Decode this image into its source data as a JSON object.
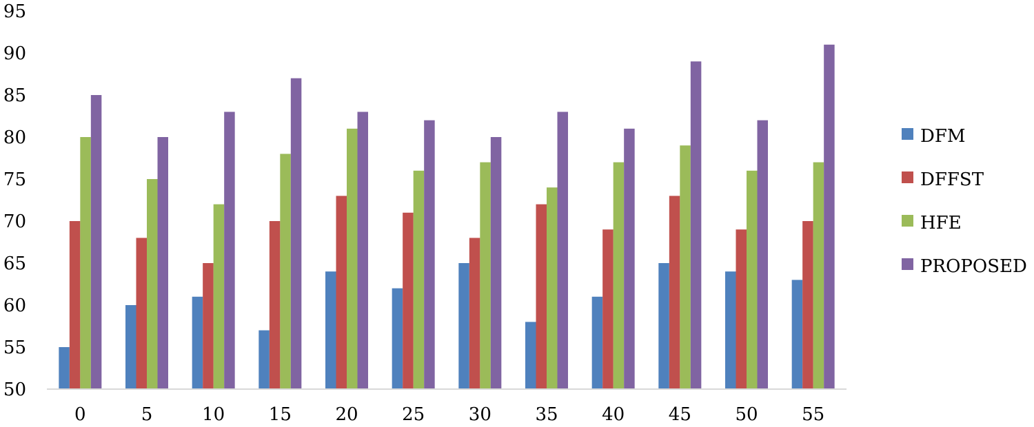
{
  "chart_data": {
    "type": "bar",
    "categories": [
      "0",
      "5",
      "10",
      "15",
      "20",
      "25",
      "30",
      "35",
      "40",
      "45",
      "50",
      "55"
    ],
    "series": [
      {
        "name": "DFM",
        "color": "#4F81BD",
        "values": [
          55,
          60,
          61,
          57,
          64,
          62,
          65,
          58,
          61,
          65,
          64,
          63
        ]
      },
      {
        "name": "DFFST",
        "color": "#C0504D",
        "values": [
          70,
          68,
          65,
          70,
          73,
          71,
          68,
          72,
          69,
          73,
          69,
          70
        ]
      },
      {
        "name": "HFE",
        "color": "#9BBB59",
        "values": [
          80,
          75,
          72,
          78,
          81,
          76,
          77,
          74,
          77,
          79,
          76,
          77
        ]
      },
      {
        "name": "PROPOSED",
        "color": "#8064A2",
        "values": [
          85,
          80,
          83,
          87,
          83,
          82,
          80,
          83,
          81,
          89,
          82,
          91
        ]
      }
    ],
    "title": "",
    "xlabel": "",
    "ylabel": "",
    "ylim": [
      50,
      95
    ],
    "yticks": [
      50,
      55,
      60,
      65,
      70,
      75,
      80,
      85,
      90,
      95
    ],
    "grid": false,
    "legend_position": "right"
  }
}
